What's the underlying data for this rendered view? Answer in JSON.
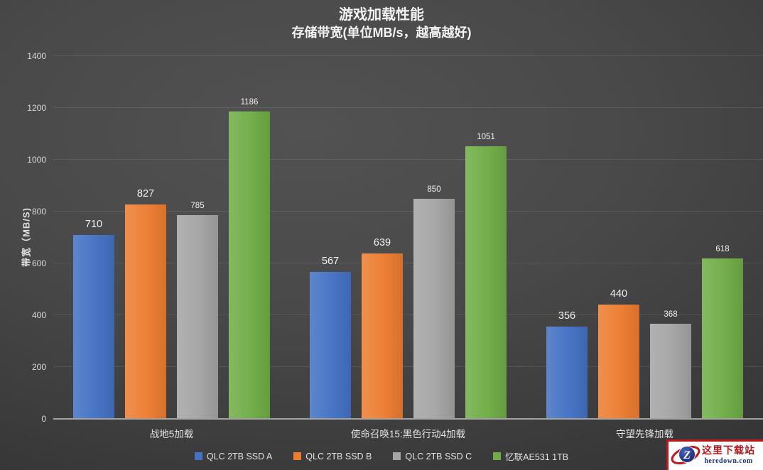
{
  "chart_data": {
    "type": "bar",
    "title": "游戏加载性能",
    "subtitle": "存储带宽(单位MB/s，越高越好)",
    "ylabel": "带宽（MB/S)",
    "categories": [
      "战地5加载",
      "使命召唤15:黑色行动4加载",
      "守望先锋加载"
    ],
    "series": [
      {
        "name": "QLC 2TB SSD A",
        "color": "#4472C4",
        "values": [
          710,
          567,
          356
        ]
      },
      {
        "name": "QLC 2TB SSD B",
        "color": "#ED7D31",
        "values": [
          827,
          639,
          440
        ]
      },
      {
        "name": "QLC 2TB SSD C",
        "color": "#A5A5A5",
        "values": [
          785,
          850,
          368
        ]
      },
      {
        "name": "忆联AE531 1TB",
        "color": "#70AD47",
        "values": [
          1186,
          1051,
          618
        ]
      }
    ],
    "ylim": [
      0,
      1400
    ],
    "yticks": [
      0,
      200,
      400,
      600,
      800,
      1000,
      1200,
      1400
    ],
    "grid": true,
    "legend_position": "bottom"
  },
  "watermark": {
    "site_name": "这里下载站",
    "site_url": "heredown.com",
    "logo_letter": "Z",
    "colors": {
      "border": "#c0181d",
      "name_text": "#b01b20",
      "url_text": "#1c3286",
      "globe": "#2b3f8f",
      "orbit": "#c0181d"
    }
  }
}
